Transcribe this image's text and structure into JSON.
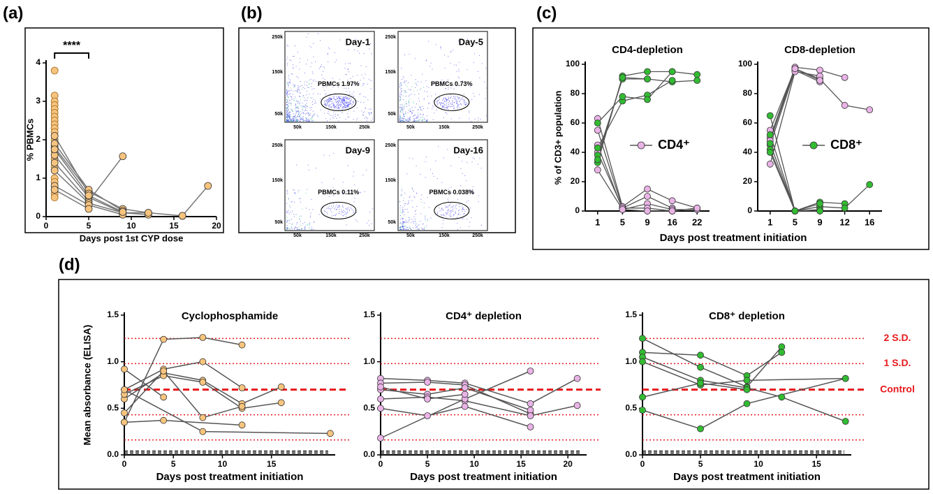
{
  "panel_labels": [
    "(a)",
    "(b)",
    "(c)",
    "(d)"
  ],
  "chart_data": [
    {
      "type": "scatter-line",
      "xlabel": "Days post 1st CYP dose",
      "ylabel": "% PBMCs",
      "annotation": "****",
      "xlim": [
        0,
        20
      ],
      "xticks": [
        0,
        5,
        10,
        15,
        20
      ],
      "ylim": [
        0,
        4
      ],
      "yticks": [
        0,
        1,
        2,
        3,
        4
      ],
      "color": "#f7c47e",
      "line_color": "#777777",
      "series": [
        {
          "x": [
            1,
            5,
            9,
            12
          ],
          "values": [
            1.8,
            0.65,
            0.2,
            0.1
          ]
        },
        {
          "x": [
            1,
            5,
            9
          ],
          "values": [
            1.9,
            0.7,
            0.15
          ]
        },
        {
          "x": [
            1,
            5,
            9,
            12
          ],
          "values": [
            1.6,
            0.5,
            0.1,
            0.05
          ]
        },
        {
          "x": [
            1,
            5,
            9
          ],
          "values": [
            1.4,
            0.4,
            1.57
          ]
        },
        {
          "x": [
            1,
            5,
            9,
            12,
            16
          ],
          "values": [
            1.2,
            0.35,
            0.1,
            0.1,
            0.02
          ]
        },
        {
          "x": [
            1,
            5
          ],
          "values": [
            2.1,
            0.6
          ]
        },
        {
          "x": [
            1,
            5,
            9
          ],
          "values": [
            0.8,
            0.3,
            0.05
          ]
        },
        {
          "x": [
            1,
            5
          ],
          "values": [
            0.7,
            0.2
          ]
        },
        {
          "x": [
            1,
            5,
            9
          ],
          "values": [
            1.75,
            0.55,
            0.12
          ]
        },
        {
          "x": [
            16,
            19
          ],
          "values": [
            0.02,
            0.8
          ]
        }
      ],
      "points": {
        "x": [
          1,
          1,
          1,
          1,
          1,
          1,
          1,
          1,
          1,
          1,
          1,
          1,
          1,
          1,
          1,
          1,
          1,
          1,
          1,
          1
        ],
        "values": [
          3.8,
          3.15,
          3.0,
          2.9,
          2.8,
          2.7,
          2.6,
          2.5,
          2.4,
          2.3,
          2.2,
          2.0,
          1.85,
          1.7,
          1.5,
          1.3,
          1.0,
          0.9,
          0.6,
          0.5
        ]
      }
    },
    {
      "type": "line",
      "title": "CD4-depletion",
      "ylabel": "% of CD3+ population",
      "xlabel": "Days post treatment initiation",
      "categories": [
        "1",
        "5",
        "9",
        "16",
        "22"
      ],
      "ylim": [
        0,
        100
      ],
      "yticks": [
        0,
        20,
        40,
        60,
        80,
        100
      ],
      "legend": {
        "label": "CD4⁺",
        "color": "#e9b3e6"
      },
      "series": [
        {
          "color": "#e9b3e6",
          "values": [
            63,
            3,
            15,
            7,
            2
          ]
        },
        {
          "color": "#e9b3e6",
          "values": [
            55,
            2,
            10,
            2,
            null
          ]
        },
        {
          "color": "#e9b3e6",
          "values": [
            45,
            1,
            5,
            1,
            1
          ]
        },
        {
          "color": "#e9b3e6",
          "values": [
            40,
            2,
            2,
            0,
            null
          ]
        },
        {
          "color": "#e9b3e6",
          "values": [
            28,
            1,
            0,
            0,
            2
          ]
        },
        {
          "color": "#33bb33",
          "values": [
            33,
            92,
            95,
            95,
            93
          ]
        },
        {
          "color": "#33bb33",
          "values": [
            38,
            90,
            90,
            88,
            89
          ]
        },
        {
          "color": "#33bb33",
          "values": [
            43,
            75,
            79,
            89,
            null
          ]
        },
        {
          "color": "#33bb33",
          "values": [
            60,
            78,
            76,
            95,
            null
          ]
        },
        {
          "color": "#33bb33",
          "values": [
            35,
            91,
            90,
            null,
            null
          ]
        }
      ]
    },
    {
      "type": "line",
      "title": "CD8-depletion",
      "categories": [
        "1",
        "5",
        "9",
        "12",
        "16"
      ],
      "ylim": [
        0,
        100
      ],
      "yticks": [
        0,
        20,
        40,
        60,
        80,
        100
      ],
      "legend": {
        "label": "CD8⁺",
        "color": "#33bb33"
      },
      "series": [
        {
          "color": "#e9b3e6",
          "values": [
            50,
            98,
            96,
            91,
            null
          ]
        },
        {
          "color": "#e9b3e6",
          "values": [
            55,
            97,
            90,
            72,
            69
          ]
        },
        {
          "color": "#e9b3e6",
          "values": [
            45,
            96,
            88,
            null,
            null
          ]
        },
        {
          "color": "#e9b3e6",
          "values": [
            32,
            95,
            92,
            null,
            null
          ]
        },
        {
          "color": "#e9b3e6",
          "values": [
            48,
            97,
            89,
            null,
            null
          ]
        },
        {
          "color": "#33bb33",
          "values": [
            65,
            0,
            6,
            5,
            null
          ]
        },
        {
          "color": "#33bb33",
          "values": [
            42,
            0,
            3,
            2,
            18
          ]
        },
        {
          "color": "#33bb33",
          "values": [
            52,
            0,
            1,
            null,
            null
          ]
        },
        {
          "color": "#33bb33",
          "values": [
            40,
            0,
            0,
            null,
            null
          ]
        },
        {
          "color": "#33bb33",
          "values": [
            46,
            0,
            5,
            null,
            null
          ]
        }
      ]
    },
    {
      "type": "scatter-line",
      "title": "Cyclophosphamide",
      "ylabel": "Mean absorbance (ELISA)",
      "xlabel": "Days post treatment initiation",
      "xlim": [
        0,
        21.5
      ],
      "xticks": [
        0,
        5,
        10,
        15
      ],
      "ylim": [
        0,
        1.5
      ],
      "yticks": [
        {
          "value": 0,
          "label": "0.0"
        },
        {
          "value": 0.5,
          "label": "0.5"
        },
        {
          "value": 1,
          "label": "1.0"
        },
        {
          "value": 1.5,
          "label": "1.5"
        }
      ],
      "color": "#f7c47e",
      "line_color": "#555555",
      "reference_lines": [
        {
          "value": 1.25
        },
        {
          "value": 0.98
        },
        {
          "value": 0.7
        },
        {
          "value": 0.43
        },
        {
          "value": 0.16
        },
        {
          "value": 0.04
        },
        {
          "value": 0.02
        }
      ],
      "series": [
        {
          "x": [
            0,
            4,
            8,
            12
          ],
          "values": [
            0.35,
            1.24,
            1.26,
            1.18
          ]
        },
        {
          "x": [
            0,
            4,
            8,
            12
          ],
          "values": [
            0.7,
            0.92,
            1.0,
            0.72
          ]
        },
        {
          "x": [
            0,
            4,
            8,
            12,
            16
          ],
          "values": [
            0.6,
            0.88,
            0.8,
            0.55,
            0.73
          ]
        },
        {
          "x": [
            0,
            4,
            8,
            12,
            16
          ],
          "values": [
            0.65,
            0.85,
            0.78,
            0.5,
            0.56
          ]
        },
        {
          "x": [
            0,
            4,
            8,
            12
          ],
          "values": [
            0.45,
            0.9,
            0.4,
            0.52
          ]
        },
        {
          "x": [
            0,
            4,
            12
          ],
          "values": [
            0.35,
            0.37,
            0.32
          ]
        },
        {
          "x": [
            0,
            4
          ],
          "values": [
            0.92,
            0.62
          ]
        },
        {
          "x": [
            0,
            8,
            21
          ],
          "values": [
            0.7,
            0.25,
            0.23
          ]
        }
      ]
    },
    {
      "type": "scatter-line",
      "title": "CD4⁺ depletion",
      "xlabel": "Days post treatment initiation",
      "xlim": [
        0,
        22
      ],
      "xticks": [
        0,
        5,
        10,
        15,
        20
      ],
      "ylim": [
        0,
        1.5
      ],
      "yticks": [
        {
          "value": 0,
          "label": "0.0"
        },
        {
          "value": 0.5,
          "label": "0.5"
        },
        {
          "value": 1,
          "label": "1.0"
        },
        {
          "value": 1.5,
          "label": "1.5"
        }
      ],
      "color": "#e9b3e6",
      "line_color": "#555555",
      "reference_lines": [
        {
          "value": 1.25
        },
        {
          "value": 0.98
        },
        {
          "value": 0.7
        },
        {
          "value": 0.43
        },
        {
          "value": 0.16
        },
        {
          "value": 0.04
        },
        {
          "value": 0.02
        }
      ],
      "series": [
        {
          "x": [
            0,
            5,
            9,
            16,
            21
          ],
          "values": [
            0.82,
            0.8,
            0.77,
            0.55,
            0.82
          ]
        },
        {
          "x": [
            0,
            5,
            9,
            16
          ],
          "values": [
            0.77,
            0.78,
            0.75,
            0.44
          ]
        },
        {
          "x": [
            0,
            5,
            9,
            16
          ],
          "values": [
            0.7,
            0.65,
            0.72,
            0.48
          ]
        },
        {
          "x": [
            0,
            5,
            9,
            16,
            21
          ],
          "values": [
            0.6,
            0.62,
            0.58,
            0.42,
            0.53
          ]
        },
        {
          "x": [
            0,
            5,
            9,
            16
          ],
          "values": [
            0.5,
            0.42,
            0.52,
            0.3
          ]
        },
        {
          "x": [
            0,
            9,
            16
          ],
          "values": [
            0.18,
            0.6,
            0.9
          ]
        },
        {
          "x": [
            0,
            5,
            9
          ],
          "values": [
            0.73,
            0.6,
            0.65
          ]
        }
      ]
    },
    {
      "type": "scatter-line",
      "title": "CD8⁺ depletion",
      "xlabel": "Days post treatment initiation",
      "xlim": [
        0,
        18
      ],
      "xticks": [
        0,
        5,
        10,
        15
      ],
      "ylim": [
        0,
        1.5
      ],
      "yticks": [
        {
          "value": 0,
          "label": "0.0"
        },
        {
          "value": 0.5,
          "label": "0.5"
        },
        {
          "value": 1,
          "label": "1.0"
        },
        {
          "value": 1.5,
          "label": "1.5"
        }
      ],
      "color": "#33bb33",
      "line_color": "#555555",
      "reference_lines": [
        {
          "value": 1.25,
          "label": "2 S.D."
        },
        {
          "value": 0.98,
          "label": "1 S.D."
        },
        {
          "value": 0.7,
          "label": "Control"
        },
        {
          "value": 0.43
        },
        {
          "value": 0.16
        },
        {
          "value": 0.04
        },
        {
          "value": 0.02
        }
      ],
      "series": [
        {
          "x": [
            0,
            5,
            9,
            12
          ],
          "values": [
            1.25,
            0.94,
            0.73,
            1.16
          ]
        },
        {
          "x": [
            0,
            5,
            9,
            12
          ],
          "values": [
            1.1,
            1.07,
            0.85,
            1.1
          ]
        },
        {
          "x": [
            0,
            5,
            9,
            12,
            17.5
          ],
          "values": [
            1.05,
            0.8,
            0.72,
            0.62,
            0.36
          ]
        },
        {
          "x": [
            0,
            5,
            9,
            17.5
          ],
          "values": [
            1.0,
            0.75,
            0.8,
            0.82
          ]
        },
        {
          "x": [
            0,
            5,
            9
          ],
          "values": [
            0.62,
            0.77,
            0.7
          ]
        },
        {
          "x": [
            0,
            5,
            9,
            17.5
          ],
          "values": [
            0.48,
            0.28,
            0.55,
            0.82
          ]
        }
      ]
    }
  ],
  "flow_panels": [
    {
      "title": "Day-1",
      "gate_label": "PBMCs 1.97%"
    },
    {
      "title": "Day-5",
      "gate_label": "PBMCs 0.73%"
    },
    {
      "title": "Day-9",
      "gate_label": "PBMCs 0.11%"
    },
    {
      "title": "Day-16",
      "gate_label": "PBMCs 0.038%"
    }
  ],
  "flow_yticks": [
    "250k",
    "150k",
    "50k"
  ],
  "flow_xticks": [
    "50k",
    "150k",
    "250k"
  ]
}
